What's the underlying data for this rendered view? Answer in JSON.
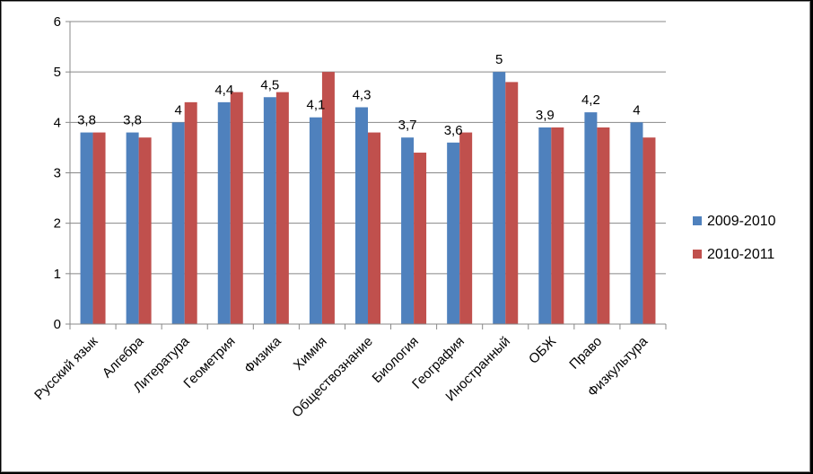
{
  "chart_data": {
    "type": "bar",
    "categories": [
      "Русский язык",
      "Алгебра",
      "Литература",
      "Геометрия",
      "Физика",
      "Химия",
      "Обществознание",
      "Биология",
      "География",
      "Иностранный",
      "ОБЖ",
      "Право",
      "Физкультура"
    ],
    "series": [
      {
        "name": "2009-2010",
        "values": [
          3.8,
          3.8,
          4.0,
          4.4,
          4.5,
          4.1,
          4.3,
          3.7,
          3.6,
          5.0,
          3.9,
          4.2,
          4.0
        ],
        "labels": [
          "3,8",
          "3,8",
          "4",
          "4,4",
          "4,5",
          "4,1",
          "4,3",
          "3,7",
          "3,6",
          "5",
          "3,9",
          "4,2",
          "4"
        ],
        "color": "#4F81BD"
      },
      {
        "name": "2010-2011",
        "values": [
          3.8,
          3.7,
          4.4,
          4.6,
          4.6,
          5.0,
          3.8,
          3.4,
          3.8,
          4.8,
          3.9,
          3.9,
          3.7
        ],
        "color": "#C0504D"
      }
    ],
    "yticks": [
      "0",
      "1",
      "2",
      "3",
      "4",
      "5",
      "6"
    ],
    "ylim": [
      0,
      6
    ],
    "grid": true,
    "legend_position": "right"
  }
}
